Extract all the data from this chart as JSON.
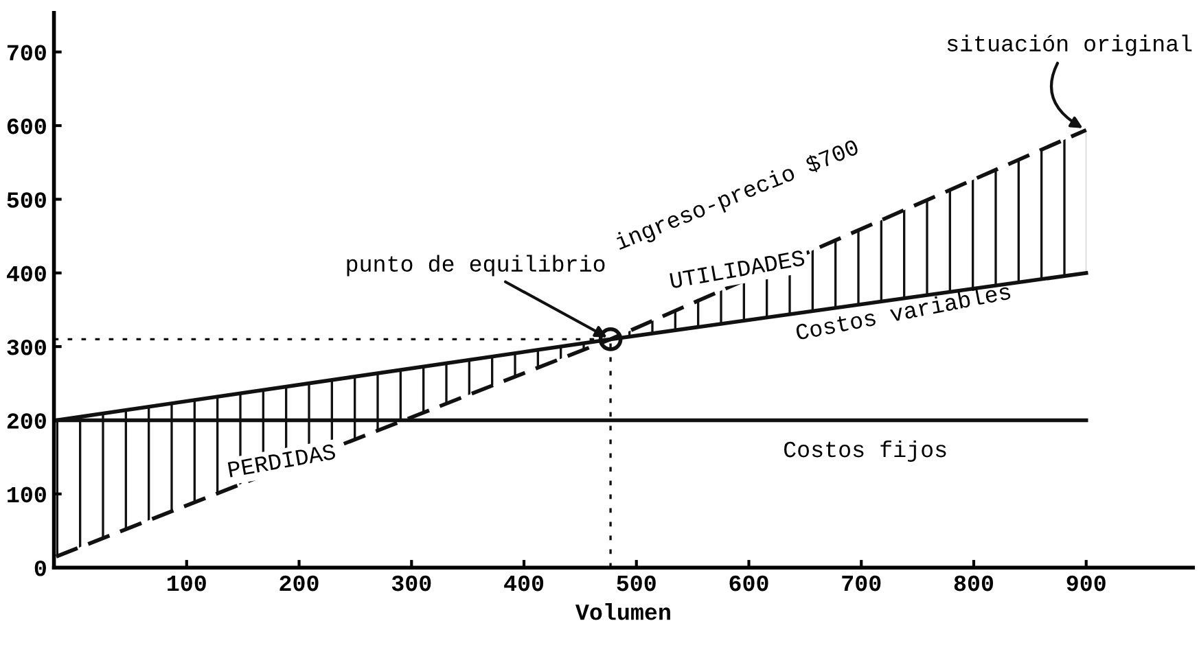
{
  "chart_data": {
    "type": "line",
    "xlabel": "Volumen",
    "xlim": [
      -18,
      995
    ],
    "ylim": [
      0,
      753
    ],
    "xticks": [
      100,
      200,
      300,
      400,
      500,
      600,
      700,
      800,
      900
    ],
    "yticks": [
      0,
      100,
      200,
      300,
      400,
      500,
      600,
      700
    ],
    "grid": false,
    "marker": "none",
    "series": [
      {
        "color": "#111111",
        "x": [
          -16,
          900
        ],
        "values": [
          200,
          200
        ],
        "line_style": "solid"
      },
      {
        "color": "#111111",
        "x": [
          -16,
          477,
          900
        ],
        "values": [
          200,
          310,
          400
        ],
        "line_style": "solid"
      },
      {
        "color": "#111111",
        "x": [
          -16,
          477,
          900
        ],
        "values": [
          15,
          310,
          594
        ],
        "lower": [
          15,
          310,
          400
        ],
        "upper": [
          200,
          310,
          594
        ],
        "line_style": "dashed"
      },
      {
        "type": "scatter",
        "color": "#111111",
        "x": [
          477
        ],
        "values": [
          310
        ],
        "marker": "circle"
      }
    ],
    "ref_lines": [
      {
        "axis": "y",
        "value": 310,
        "line_style": "dotted",
        "color": "#111111"
      },
      {
        "axis": "x",
        "value": 477,
        "line_style": "dotted",
        "color": "#111111"
      }
    ],
    "annotations": [
      "Costos fijos",
      {
        "text": "Costos variables",
        "x": 640,
        "y": 345
      },
      "ingreso-precio $700",
      "UTILIDADES",
      "PERDIDAS",
      {
        "text": "punto de equilibrio",
        "x": 477,
        "y": 310
      },
      {
        "text": "situación original",
        "x": 900,
        "y": 594
      }
    ]
  }
}
